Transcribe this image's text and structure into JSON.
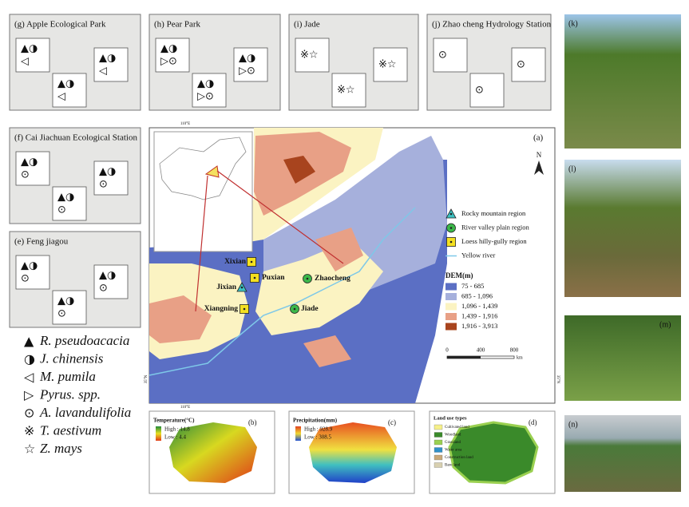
{
  "sites": [
    {
      "label": "(g) Apple Ecological Park",
      "samples": [
        [
          "▲◑",
          "◁"
        ],
        [
          "▲◑",
          "◁"
        ],
        [
          "▲◑",
          "◁"
        ]
      ]
    },
    {
      "label": "(h) Pear Park",
      "samples": [
        [
          "▲◑",
          "▷⊙"
        ],
        [
          "▲◑",
          "▷⊙"
        ],
        [
          "▲◑",
          "▷⊙"
        ]
      ]
    },
    {
      "label": "(i) Jade",
      "samples": [
        [
          "※☆"
        ],
        [
          "※☆"
        ],
        [
          "※☆"
        ]
      ]
    },
    {
      "label": "(j) Zhao cheng Hydrology Station",
      "samples": [
        [
          "⊙"
        ],
        [
          "⊙"
        ],
        [
          "⊙"
        ]
      ]
    },
    {
      "label": "(f) Cai Jiachuan Ecological Station",
      "samples": [
        [
          "▲◑",
          "⊙"
        ],
        [
          "▲◑",
          "⊙"
        ],
        [
          "▲◑",
          "⊙"
        ]
      ]
    },
    {
      "label": "(e) Feng jiagou",
      "samples": [
        [
          "▲◑",
          "⊙"
        ],
        [
          "▲◑",
          "⊙"
        ],
        [
          "▲◑",
          "⊙"
        ]
      ]
    }
  ],
  "species_legend": [
    {
      "symbol": "▲",
      "name": "R. pseudoacacia"
    },
    {
      "symbol": "◑",
      "name": "J. chinensis"
    },
    {
      "symbol": "◁",
      "name": "M. pumila"
    },
    {
      "symbol": "▷",
      "name": "Pyrus. spp."
    },
    {
      "symbol": "⊙",
      "name": "A. lavandulifolia"
    },
    {
      "symbol": "※",
      "name": "T. aestivum"
    },
    {
      "symbol": "☆",
      "name": "Z. mays"
    }
  ],
  "main_map": {
    "label": "(a)",
    "north": "N",
    "lon_label": "110°E",
    "lat_label": "35°N",
    "region_legend": [
      "Rocky mountain region",
      "River valley plain region",
      "Loess hilly-gully region",
      "Yellow river"
    ],
    "dem_title": "DEM(m)",
    "dem_classes": [
      {
        "label": "75 - 685",
        "color": "#5b6fc4"
      },
      {
        "label": "685 - 1,096",
        "color": "#a6b0dc"
      },
      {
        "label": "1,096 - 1,439",
        "color": "#fbf3c2"
      },
      {
        "label": "1,439 - 1,916",
        "color": "#e8a086"
      },
      {
        "label": "1,916 - 3,913",
        "color": "#a8441e"
      }
    ],
    "scale_ticks": [
      "0",
      "400",
      "800"
    ],
    "scale_unit": "km",
    "places": [
      {
        "name": "Xixian",
        "region": 2
      },
      {
        "name": "Puxian",
        "region": 2
      },
      {
        "name": "Jixian",
        "region": 0
      },
      {
        "name": "Xiangning",
        "region": 2
      },
      {
        "name": "Zhaocheng",
        "region": 1
      },
      {
        "name": "Jiade",
        "region": 1
      }
    ]
  },
  "insets": [
    {
      "label": "(b)",
      "title": "Temperature(°C)",
      "high": "High : 14.8",
      "low": "Low : 4.4"
    },
    {
      "label": "(c)",
      "title": "Precipitation(mm)",
      "high": "High : 928.9",
      "low": "Low : 308.5"
    },
    {
      "label": "(d)",
      "title": "Land use types",
      "classes": [
        "Cultivated land",
        "Woodland",
        "Grassland",
        "Water area",
        "Construction land",
        "Bare land"
      ]
    }
  ],
  "photos": [
    "(k)",
    "(l)",
    "(m)",
    "(n)"
  ]
}
